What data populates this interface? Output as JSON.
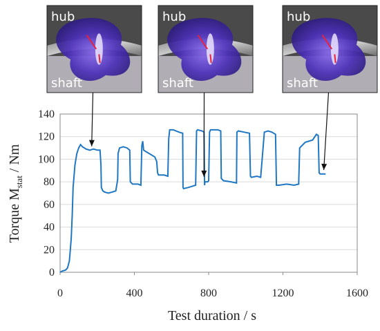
{
  "photos": [
    {
      "top_label": "hub",
      "bottom_label": "shaft"
    },
    {
      "top_label": "hub",
      "bottom_label": "shaft"
    },
    {
      "top_label": "hub",
      "bottom_label": "shaft"
    }
  ],
  "chart_data": {
    "type": "line",
    "title": "",
    "xlabel": "Test duration / s",
    "ylabel_main": "Torque M",
    "ylabel_sub": "stat",
    "ylabel_tail": " / Nm",
    "xlim": [
      0,
      1600
    ],
    "ylim": [
      0,
      140
    ],
    "xticks": [
      0,
      400,
      800,
      1200,
      1600
    ],
    "yticks": [
      0,
      20,
      40,
      60,
      80,
      100,
      120,
      140
    ],
    "grid": "horizontal",
    "series_color": "#1f77c4",
    "series": [
      {
        "x": [
          0,
          10,
          30,
          40,
          50,
          55,
          60,
          65,
          70,
          80,
          90,
          100,
          110,
          120,
          140,
          160,
          180,
          200,
          215,
          220,
          222,
          230,
          240,
          260,
          280,
          300,
          310,
          312,
          320,
          340,
          360,
          375,
          378,
          390,
          420,
          435,
          440,
          445,
          450,
          470,
          490,
          510,
          520,
          525,
          530,
          560,
          580,
          585,
          590,
          610,
          640,
          660,
          662,
          665,
          690,
          710,
          730,
          735,
          740,
          765,
          775,
          778,
          780,
          795,
          800,
          805,
          810,
          850,
          865,
          868,
          880,
          920,
          950,
          952,
          960,
          990,
          1020,
          1025,
          1030,
          1060,
          1080,
          1100,
          1120,
          1140,
          1150,
          1160,
          1165,
          1180,
          1220,
          1260,
          1285,
          1290,
          1320,
          1360,
          1380,
          1390,
          1395,
          1400,
          1430
        ],
        "y": [
          0,
          1,
          2,
          4,
          10,
          20,
          30,
          50,
          75,
          95,
          105,
          110,
          113,
          111,
          109,
          108,
          109,
          108,
          108,
          95,
          75,
          72,
          71,
          70,
          71,
          72,
          82,
          105,
          110,
          111,
          110,
          108,
          80,
          78,
          78,
          77,
          112,
          116,
          108,
          106,
          104,
          102,
          98,
          88,
          86,
          86,
          85,
          118,
          126,
          126,
          124,
          123,
          75,
          74,
          75,
          76,
          77,
          125,
          126,
          125,
          124,
          77,
          80,
          80,
          81,
          124,
          126,
          126,
          125,
          83,
          81,
          80,
          79,
          124,
          125,
          124,
          123,
          85,
          84,
          85,
          84,
          124,
          125,
          124,
          123,
          122,
          77,
          77,
          78,
          77,
          78,
          110,
          115,
          117,
          122,
          121,
          88,
          87,
          87
        ]
      }
    ],
    "annotations": [
      {
        "from_photo": 0,
        "to_x": 170,
        "to_y": 109
      },
      {
        "from_photo": 1,
        "to_x": 775,
        "to_y": 82
      },
      {
        "from_photo": 2,
        "to_x": 1420,
        "to_y": 88
      }
    ]
  }
}
